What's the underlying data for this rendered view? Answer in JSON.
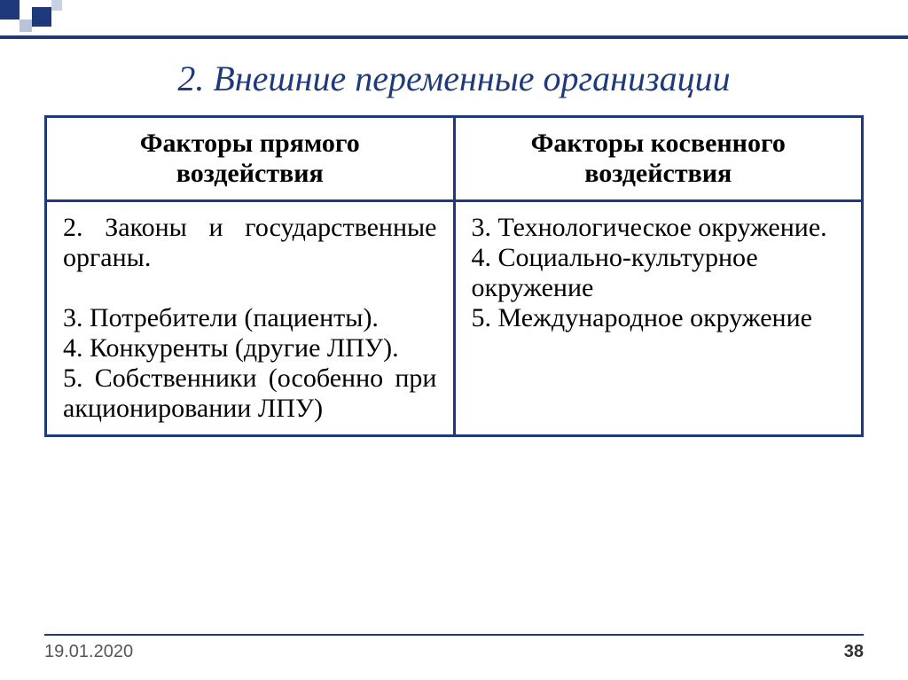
{
  "title": "2. Внешние переменные организации",
  "table": {
    "headers": {
      "left": "Факторы прямого воздействия",
      "right": "Факторы косвенного воздействия"
    },
    "cells": {
      "left": "2. Законы и государственные органы.\n\n3. Потребители (пациенты).\n4. Конкуренты (другие ЛПУ).\n5. Собственники (особенно при акционировании ЛПУ)",
      "right": "3. Технологическое окружение.\n4. Социально-культурное окружение\n5. Международное окружение"
    }
  },
  "footer": {
    "date": "19.01.2020",
    "page": "38"
  },
  "colors": {
    "primary": "#1f3a7a",
    "text": "#000000",
    "footer_text": "#555555",
    "background": "#ffffff"
  }
}
